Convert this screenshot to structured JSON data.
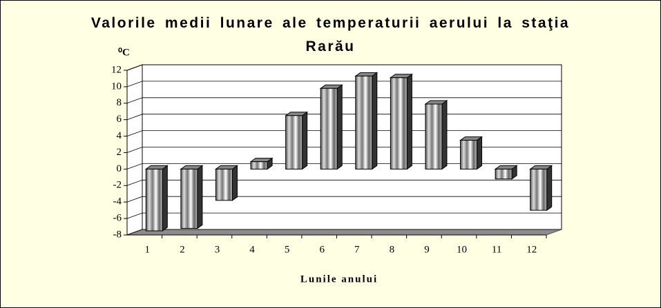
{
  "chart_data": {
    "type": "bar3d",
    "title": "Valorile medii lunare ale temperaturii aerului la staţia Rarău",
    "y_label": "⁰C",
    "x_label": "Lunile anului",
    "categories": [
      "1",
      "2",
      "3",
      "4",
      "5",
      "6",
      "7",
      "8",
      "9",
      "10",
      "11",
      "12"
    ],
    "values": [
      -7.5,
      -7.2,
      -3.8,
      0.9,
      6.5,
      9.8,
      11.3,
      11.1,
      7.9,
      3.5,
      -1.2,
      -5.0
    ],
    "color": "#9a9a9a",
    "ylim": [
      -8,
      12
    ],
    "yticks": [
      -8,
      -6,
      -4,
      -2,
      0,
      2,
      4,
      6,
      8,
      10,
      12
    ],
    "grid": true
  }
}
